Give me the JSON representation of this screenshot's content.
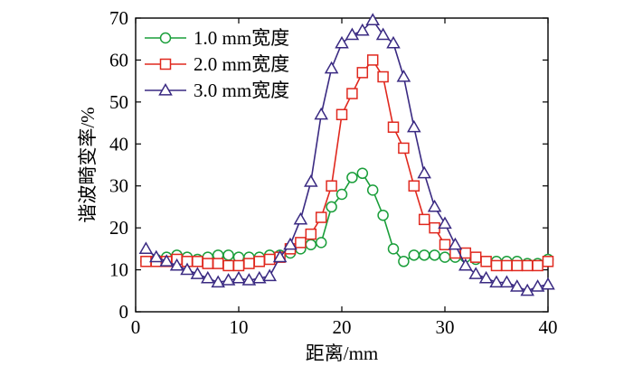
{
  "chart_data": {
    "type": "line",
    "xlabel": "距离/mm",
    "ylabel": "谐波畸变率/%",
    "xlim": [
      0,
      40
    ],
    "ylim": [
      0,
      70
    ],
    "xticks": [
      "0",
      "10",
      "20",
      "30",
      "40"
    ],
    "yticks": [
      "0",
      "10",
      "20",
      "30",
      "40",
      "50",
      "60",
      "70"
    ],
    "grid": false,
    "legend_position": "top-left",
    "series": [
      {
        "name": "1.0 mm宽度",
        "color": "#1a9e3a",
        "marker": "circle",
        "x": [
          1,
          2,
          3,
          4,
          5,
          6,
          7,
          8,
          9,
          10,
          11,
          12,
          13,
          14,
          15,
          16,
          17,
          18,
          19,
          20,
          21,
          22,
          23,
          24,
          25,
          26,
          27,
          28,
          29,
          30,
          31,
          32,
          33,
          34,
          35,
          36,
          37,
          38,
          39,
          40
        ],
        "y": [
          12,
          12.5,
          13,
          13.5,
          13,
          12.5,
          13,
          13.5,
          13.5,
          13,
          13,
          13,
          13.5,
          13.5,
          14,
          15,
          16,
          16.5,
          25,
          28,
          32,
          33,
          29,
          23,
          15,
          12,
          13.5,
          13.5,
          13.5,
          13,
          13,
          13,
          12.5,
          12,
          12,
          12,
          12,
          11.5,
          11.5,
          12.5
        ]
      },
      {
        "name": "2.0 mm宽度",
        "color": "#e0281e",
        "marker": "square",
        "x": [
          1,
          2,
          3,
          4,
          5,
          6,
          7,
          8,
          9,
          10,
          11,
          12,
          13,
          14,
          15,
          16,
          17,
          18,
          19,
          20,
          21,
          22,
          23,
          24,
          25,
          26,
          27,
          28,
          29,
          30,
          31,
          32,
          33,
          34,
          35,
          36,
          37,
          38,
          39,
          40
        ],
        "y": [
          12,
          12,
          12,
          12.5,
          12,
          12,
          11.5,
          11.5,
          11,
          11,
          11.5,
          12,
          12.5,
          13,
          15,
          16.5,
          18.5,
          22.5,
          30,
          47,
          52,
          57,
          60,
          56,
          44,
          39,
          30,
          22,
          20,
          16,
          14,
          14,
          13,
          12,
          11,
          11,
          11,
          11,
          11,
          12
        ]
      },
      {
        "name": "3.0 mm宽度",
        "color": "#3a2a82",
        "marker": "triangle",
        "x": [
          1,
          2,
          3,
          4,
          5,
          6,
          7,
          8,
          9,
          10,
          11,
          12,
          13,
          14,
          15,
          16,
          17,
          18,
          19,
          20,
          21,
          22,
          23,
          24,
          25,
          26,
          27,
          28,
          29,
          30,
          31,
          32,
          33,
          34,
          35,
          36,
          37,
          38,
          39,
          40
        ],
        "y": [
          15,
          13,
          12,
          11,
          10,
          9,
          8,
          7,
          7.5,
          8,
          7.5,
          8,
          8.5,
          13,
          16,
          22,
          31,
          47,
          58,
          64,
          66,
          67,
          69.5,
          66,
          64,
          56,
          44,
          33,
          25,
          21,
          16,
          11,
          9,
          8,
          7,
          7,
          6,
          5,
          6,
          6.5
        ]
      }
    ]
  }
}
